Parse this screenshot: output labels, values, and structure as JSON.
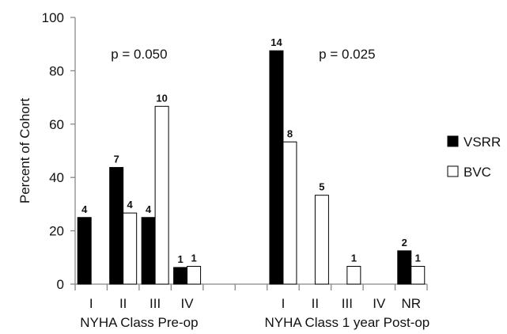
{
  "chart_data": {
    "type": "bar",
    "ylabel": "Percent of Cohort",
    "ylim": [
      0,
      100
    ],
    "yticks": [
      "0",
      "20",
      "40",
      "60",
      "80",
      "100"
    ],
    "legend_position": "right",
    "grid": false,
    "groups": [
      {
        "label": "NYHA Class Pre-op",
        "annotation": "p = 0.050",
        "categories": [
          "I",
          "II",
          "III",
          "IV"
        ],
        "series": [
          {
            "name": "VSRR",
            "values": [
              25,
              43.75,
              25,
              6.25
            ],
            "counts": [
              "4",
              "7",
              "4",
              "1"
            ]
          },
          {
            "name": "BVC",
            "values": [
              0,
              26.67,
              66.67,
              6.67
            ],
            "counts": [
              "",
              "4",
              "10",
              "1"
            ]
          }
        ]
      },
      {
        "label": "NYHA Class 1 year Post-op",
        "annotation": "p = 0.025",
        "categories": [
          "I",
          "II",
          "III",
          "IV",
          "NR"
        ],
        "series": [
          {
            "name": "VSRR",
            "values": [
              87.5,
              0,
              0,
              0,
              12.5
            ],
            "counts": [
              "14",
              "",
              "",
              "",
              "2"
            ]
          },
          {
            "name": "BVC",
            "values": [
              53.33,
              33.33,
              6.67,
              0,
              6.67
            ],
            "counts": [
              "8",
              "5",
              "1",
              "",
              "1"
            ]
          }
        ]
      }
    ],
    "legend": [
      {
        "name": "VSRR",
        "color": "#000000",
        "fill": "solid"
      },
      {
        "name": "BVC",
        "color": "#ffffff",
        "fill": "outline"
      }
    ]
  }
}
